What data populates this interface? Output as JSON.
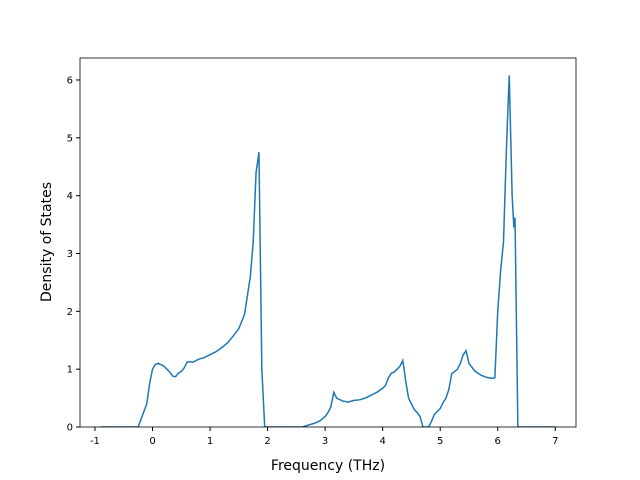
{
  "chart_data": {
    "type": "line",
    "x_label": "Frequency (THz)",
    "y_label": "Density of States",
    "series": [
      {
        "name": "DOS",
        "color": "#1f77b4",
        "x": [
          -0.9,
          -0.25,
          -0.1,
          -0.05,
          0,
          0.05,
          0.1,
          0.2,
          0.3,
          0.35,
          0.4,
          0.45,
          0.5,
          0.55,
          0.6,
          0.65,
          0.7,
          0.8,
          0.9,
          1.0,
          1.1,
          1.2,
          1.3,
          1.4,
          1.5,
          1.6,
          1.7,
          1.75,
          1.8,
          1.85,
          1.9,
          1.95,
          2.6,
          2.7,
          2.8,
          2.9,
          3.0,
          3.05,
          3.1,
          3.15,
          3.2,
          3.3,
          3.4,
          3.5,
          3.6,
          3.7,
          3.8,
          3.9,
          4.0,
          4.05,
          4.1,
          4.15,
          4.2,
          4.3,
          4.35,
          4.4,
          4.45,
          4.5,
          4.55,
          4.6,
          4.65,
          4.7,
          4.8,
          4.85,
          4.9,
          5.0,
          5.05,
          5.1,
          5.15,
          5.2,
          5.3,
          5.35,
          5.4,
          5.45,
          5.5,
          5.6,
          5.7,
          5.8,
          5.9,
          5.95,
          6.0,
          6.05,
          6.1,
          6.15,
          6.2,
          6.25,
          6.28,
          6.3,
          6.35,
          7.0
        ],
        "values": [
          0,
          0,
          0.4,
          0.75,
          1.0,
          1.08,
          1.1,
          1.05,
          0.95,
          0.88,
          0.87,
          0.93,
          0.96,
          1.02,
          1.12,
          1.13,
          1.12,
          1.17,
          1.2,
          1.25,
          1.3,
          1.37,
          1.45,
          1.57,
          1.7,
          1.95,
          2.6,
          3.2,
          4.4,
          4.75,
          1.0,
          0,
          0,
          0.03,
          0.06,
          0.1,
          0.18,
          0.25,
          0.35,
          0.6,
          0.5,
          0.45,
          0.43,
          0.46,
          0.47,
          0.5,
          0.55,
          0.6,
          0.67,
          0.72,
          0.85,
          0.93,
          0.95,
          1.05,
          1.15,
          0.8,
          0.5,
          0.4,
          0.3,
          0.25,
          0.18,
          0,
          0,
          0.1,
          0.22,
          0.32,
          0.42,
          0.5,
          0.65,
          0.92,
          1.0,
          1.1,
          1.25,
          1.32,
          1.1,
          0.97,
          0.9,
          0.86,
          0.84,
          0.85,
          2.0,
          2.7,
          3.2,
          4.8,
          6.08,
          4.0,
          3.45,
          3.62,
          0,
          0
        ]
      }
    ],
    "xlim": [
      -1.26,
      7.36
    ],
    "ylim": [
      0,
      6.38
    ],
    "xticks": [
      -1,
      0,
      1,
      2,
      3,
      4,
      5,
      6,
      7
    ],
    "yticks": [
      0,
      1,
      2,
      3,
      4,
      5,
      6
    ]
  }
}
